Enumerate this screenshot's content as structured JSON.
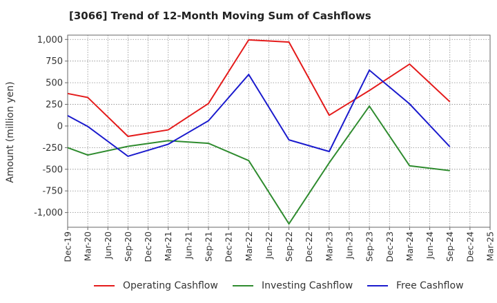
{
  "chart_data": {
    "type": "line",
    "title": "[3066]  Trend of 12-Month Moving Sum of Cashflows",
    "xlabel": "",
    "ylabel": "Amount (million yen)",
    "categories": [
      "Dec-19",
      "Mar-20",
      "Jun-20",
      "Sep-20",
      "Dec-20",
      "Mar-21",
      "Jun-21",
      "Sep-21",
      "Dec-21",
      "Mar-22",
      "Jun-22",
      "Sep-22",
      "Dec-22",
      "Mar-23",
      "Jun-23",
      "Sep-23",
      "Dec-23",
      "Mar-24",
      "Jun-24",
      "Sep-24",
      "Dec-24",
      "Mar-25"
    ],
    "ylim": [
      -1170,
      1050
    ],
    "yticks": [
      1000,
      750,
      500,
      250,
      0,
      -250,
      -500,
      -750,
      -1000
    ],
    "ytick_labels": [
      "1,000",
      "750",
      "500",
      "250",
      "0",
      "-250",
      "-500",
      "-750",
      "-1,000"
    ],
    "grid": true,
    "legend_position": "bottom",
    "series": [
      {
        "name": "Operating Cashflow",
        "color": "#e41a1a",
        "values": [
          375,
          330,
          null,
          -120,
          null,
          -45,
          null,
          260,
          null,
          995,
          null,
          970,
          null,
          125,
          null,
          410,
          null,
          715,
          null,
          280,
          null,
          null
        ]
      },
      {
        "name": "Investing Cashflow",
        "color": "#2e8b2e",
        "values": [
          -250,
          -335,
          null,
          -235,
          null,
          -170,
          null,
          -200,
          null,
          -400,
          null,
          -1130,
          null,
          -425,
          null,
          230,
          null,
          -460,
          null,
          -515,
          null,
          null
        ]
      },
      {
        "name": "Free Cashflow",
        "color": "#1a1acd",
        "values": [
          120,
          -5,
          null,
          -350,
          null,
          -210,
          null,
          60,
          null,
          595,
          null,
          -160,
          null,
          -295,
          null,
          645,
          null,
          255,
          null,
          -240,
          null,
          null
        ]
      }
    ]
  }
}
